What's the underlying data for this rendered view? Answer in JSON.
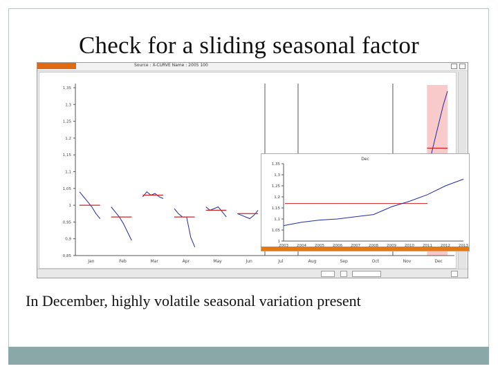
{
  "slide": {
    "title": "Check for a sliding seasonal factor",
    "caption": "In December, highly volatile seasonal variation present"
  },
  "window": {
    "source_label": "Source : X-CURVE    Name : 2005 100"
  },
  "colors": {
    "footer_bar": "#8aa8a8",
    "app_badge": "#e06a12",
    "series_line": "#1f2aa8",
    "seasonal_mean": "#cc2222",
    "highlight_band": "#f8caca",
    "inset_bottom_bar": "#e07a1a"
  },
  "chart_data": [
    {
      "type": "line",
      "title": "",
      "y_ticks": [
        "0,85",
        "0,9",
        "0,95",
        "1",
        "1,05",
        "1,1",
        "1,15",
        "1,2",
        "1,25",
        "1,3",
        "1,35"
      ],
      "ylim": [
        0.85,
        1.35
      ],
      "months": [
        "Jan",
        "Feb",
        "Mar",
        "Apr",
        "May",
        "Jun",
        "Jul",
        "Aug",
        "Sep",
        "Oct",
        "Nov",
        "Dec"
      ],
      "highlighted_month": "Dec",
      "series": [
        {
          "month": "Jan",
          "values": [
            1.04,
            1.025,
            1.01,
            0.995,
            0.975,
            0.96
          ],
          "mean": 1.0
        },
        {
          "month": "Feb",
          "values": [
            0.995,
            0.98,
            0.965,
            0.945,
            0.92,
            0.895
          ],
          "mean": 0.965
        },
        {
          "month": "Mar",
          "values": [
            1.025,
            1.04,
            1.03,
            1.035,
            1.025,
            1.02
          ],
          "mean": 1.03
        },
        {
          "month": "Apr",
          "values": [
            0.99,
            0.975,
            0.965,
            0.965,
            0.905,
            0.875
          ],
          "mean": 0.965
        },
        {
          "month": "May",
          "values": [
            0.995,
            0.985,
            0.99,
            0.995,
            0.98,
            0.965
          ],
          "mean": 0.985
        },
        {
          "month": "Jun",
          "values": [
            0.975,
            0.97,
            0.965,
            0.96,
            0.97,
            0.985
          ],
          "mean": 0.975
        },
        {
          "month": "Dec",
          "values": [
            1.1,
            1.15,
            1.2,
            1.25,
            1.3,
            1.34
          ],
          "mean": 1.17
        }
      ]
    },
    {
      "type": "line",
      "title": "Dec",
      "y_ticks": [
        "1",
        "1,05",
        "1,1",
        "1,15",
        "1,2",
        "1,25",
        "1,3",
        "1,35"
      ],
      "ylim": [
        1.0,
        1.35
      ],
      "x_ticks": [
        "2003",
        "2004",
        "2005",
        "2006",
        "2007",
        "2008",
        "2009",
        "2010",
        "2011",
        "2012",
        "2013"
      ],
      "series": [
        {
          "name": "",
          "x": [
            2003,
            2004,
            2005,
            2006,
            2007,
            2008,
            2009,
            2010,
            2011,
            2012,
            2013
          ],
          "values": [
            1.07,
            1.085,
            1.095,
            1.1,
            1.11,
            1.12,
            1.155,
            1.18,
            1.21,
            1.25,
            1.28
          ]
        }
      ],
      "mean": 1.17
    }
  ]
}
